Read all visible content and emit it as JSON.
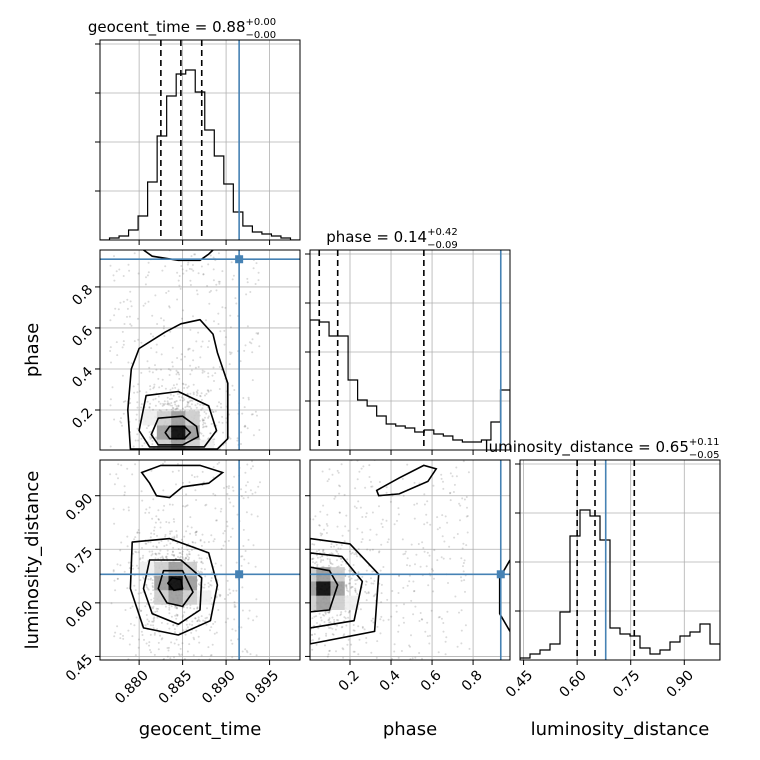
{
  "chart_data": {
    "type": "corner",
    "parameters": [
      "geocent_time",
      "phase",
      "luminosity_distance"
    ],
    "truths": {
      "geocent_time": 0.8915,
      "phase": 0.935,
      "luminosity_distance": 0.68
    },
    "colors": {
      "truth": "#4682b4",
      "hist": "#000000",
      "grid": "#b0b0b0"
    },
    "ranges": {
      "geocent_time": [
        0.8755,
        0.8985
      ],
      "phase": [
        0.005,
        0.98
      ],
      "luminosity_distance": [
        0.44,
        1.0
      ]
    },
    "ticks": {
      "geocent_time": [
        {
          "v": 0.88,
          "label": "0.880"
        },
        {
          "v": 0.885,
          "label": "0.885"
        },
        {
          "v": 0.89,
          "label": "0.890"
        },
        {
          "v": 0.895,
          "label": "0.895"
        }
      ],
      "phase": [
        {
          "v": 0.2,
          "label": "0.2"
        },
        {
          "v": 0.4,
          "label": "0.4"
        },
        {
          "v": 0.6,
          "label": "0.6"
        },
        {
          "v": 0.8,
          "label": "0.8"
        }
      ],
      "luminosity_distance": [
        {
          "v": 0.45,
          "label": "0.45"
        },
        {
          "v": 0.6,
          "label": "0.60"
        },
        {
          "v": 0.75,
          "label": "0.75"
        },
        {
          "v": 0.9,
          "label": "0.90"
        }
      ]
    },
    "titles": [
      {
        "param": "geocent_time",
        "text": "geocent_time = 0.88",
        "sup": "+0.00",
        "sub": "−0.00",
        "quantiles": [
          0.8825,
          0.8848,
          0.8872
        ]
      },
      {
        "param": "phase",
        "text": "phase = 0.14",
        "sup": "+0.42",
        "sub": "−0.09",
        "quantiles": [
          0.05,
          0.14,
          0.56
        ]
      },
      {
        "param": "luminosity_distance",
        "text": "luminosity_distance = 0.65",
        "sup": "+0.11",
        "sub": "−0.05",
        "quantiles": [
          0.6,
          0.65,
          0.76
        ]
      }
    ],
    "histograms": {
      "geocent_time": {
        "range": [
          0.8755,
          0.8985
        ],
        "counts": [
          0,
          0.01,
          0.02,
          0.05,
          0.12,
          0.29,
          0.52,
          0.72,
          0.83,
          0.85,
          0.74,
          0.55,
          0.42,
          0.28,
          0.14,
          0.07,
          0.04,
          0.03,
          0.02,
          0.01,
          0
        ]
      },
      "phase": {
        "range": [
          0.005,
          0.98
        ],
        "counts": [
          0.65,
          0.64,
          0.57,
          0.57,
          0.35,
          0.25,
          0.22,
          0.17,
          0.13,
          0.12,
          0.11,
          0.09,
          0.1,
          0.08,
          0.07,
          0.05,
          0.04,
          0.04,
          0.05,
          0.14,
          0.3
        ]
      },
      "luminosity_distance": {
        "range": [
          0.44,
          1.0
        ],
        "counts": [
          0.01,
          0.03,
          0.05,
          0.08,
          0.24,
          0.62,
          0.75,
          0.72,
          0.6,
          0.16,
          0.13,
          0.12,
          0.06,
          0.03,
          0.05,
          0.09,
          0.12,
          0.14,
          0.18,
          0.08
        ]
      }
    },
    "pairs": [
      {
        "x": "geocent_time",
        "y": "phase",
        "peak": {
          "x": 0.8845,
          "y": 0.09
        },
        "contours": [
          [
            [
              0.8835,
              0.12
            ],
            [
              0.8852,
              0.12
            ],
            [
              0.8859,
              0.09
            ],
            [
              0.8852,
              0.06
            ],
            [
              0.8835,
              0.06
            ],
            [
              0.883,
              0.09
            ]
          ],
          [
            [
              0.8822,
              0.16
            ],
            [
              0.885,
              0.17
            ],
            [
              0.8866,
              0.12
            ],
            [
              0.8868,
              0.07
            ],
            [
              0.885,
              0.03
            ],
            [
              0.8822,
              0.03
            ],
            [
              0.8814,
              0.08
            ]
          ],
          [
            [
              0.8808,
              0.27
            ],
            [
              0.8845,
              0.29
            ],
            [
              0.888,
              0.22
            ],
            [
              0.8889,
              0.1
            ],
            [
              0.8875,
              0.02
            ],
            [
              0.8812,
              0.02
            ],
            [
              0.88,
              0.1
            ]
          ],
          [
            [
              0.88,
              0.5
            ],
            [
              0.883,
              0.58
            ],
            [
              0.8848,
              0.62
            ],
            [
              0.887,
              0.64
            ],
            [
              0.8885,
              0.57
            ],
            [
              0.889,
              0.48
            ],
            [
              0.8902,
              0.33
            ],
            [
              0.8902,
              0.06
            ],
            [
              0.889,
              0.01
            ],
            [
              0.879,
              0.01
            ],
            [
              0.8787,
              0.2
            ],
            [
              0.8791,
              0.4
            ]
          ]
        ],
        "top_contour": [
          [
            0.8805,
            0.98
          ],
          [
            0.8815,
            0.95
          ],
          [
            0.8845,
            0.93
          ],
          [
            0.887,
            0.93
          ],
          [
            0.888,
            0.96
          ],
          [
            0.8885,
            0.98
          ]
        ]
      },
      {
        "x": "geocent_time",
        "y": "luminosity_distance",
        "peak": {
          "x": 0.8842,
          "y": 0.655
        },
        "contours": [
          [
            [
              0.8838,
              0.67
            ],
            [
              0.8848,
              0.665
            ],
            [
              0.885,
              0.64
            ],
            [
              0.884,
              0.635
            ],
            [
              0.8833,
              0.655
            ]
          ],
          [
            [
              0.8828,
              0.69
            ],
            [
              0.885,
              0.69
            ],
            [
              0.8862,
              0.63
            ],
            [
              0.885,
              0.59
            ],
            [
              0.8832,
              0.6
            ],
            [
              0.8822,
              0.64
            ]
          ],
          [
            [
              0.8812,
              0.72
            ],
            [
              0.8848,
              0.72
            ],
            [
              0.8872,
              0.67
            ],
            [
              0.887,
              0.58
            ],
            [
              0.8845,
              0.54
            ],
            [
              0.8815,
              0.57
            ],
            [
              0.8805,
              0.64
            ]
          ],
          [
            [
              0.8792,
              0.77
            ],
            [
              0.8835,
              0.78
            ],
            [
              0.888,
              0.74
            ],
            [
              0.889,
              0.65
            ],
            [
              0.8882,
              0.55
            ],
            [
              0.8845,
              0.51
            ],
            [
              0.8805,
              0.53
            ],
            [
              0.879,
              0.64
            ]
          ]
        ],
        "top_contour": [
          [
            0.8803,
            0.965
          ],
          [
            0.8825,
            0.985
          ],
          [
            0.887,
            0.985
          ],
          [
            0.8896,
            0.965
          ],
          [
            0.888,
            0.935
          ],
          [
            0.885,
            0.925
          ],
          [
            0.8835,
            0.895
          ],
          [
            0.882,
            0.9
          ],
          [
            0.8812,
            0.935
          ]
        ]
      },
      {
        "x": "phase",
        "y": "luminosity_distance",
        "peak": {
          "x": 0.07,
          "y": 0.64
        },
        "contours": [
          [
            [
              0.005,
              0.7
            ],
            [
              0.1,
              0.69
            ],
            [
              0.14,
              0.65
            ],
            [
              0.1,
              0.58
            ],
            [
              0.005,
              0.575
            ]
          ],
          [
            [
              0.005,
              0.74
            ],
            [
              0.16,
              0.73
            ],
            [
              0.26,
              0.66
            ],
            [
              0.22,
              0.55
            ],
            [
              0.005,
              0.53
            ]
          ],
          [
            [
              0.005,
              0.78
            ],
            [
              0.2,
              0.765
            ],
            [
              0.34,
              0.68
            ],
            [
              0.32,
              0.52
            ],
            [
              0.005,
              0.485
            ]
          ]
        ],
        "top_contour": [
          [
            0.33,
            0.915
          ],
          [
            0.44,
            0.95
          ],
          [
            0.56,
            0.985
          ],
          [
            0.62,
            0.975
          ],
          [
            0.58,
            0.94
          ],
          [
            0.44,
            0.905
          ],
          [
            0.34,
            0.9
          ]
        ],
        "edge_contour": [
          [
            0.98,
            0.72
          ],
          [
            0.93,
            0.67
          ],
          [
            0.93,
            0.57
          ],
          [
            0.98,
            0.52
          ]
        ]
      }
    ]
  }
}
